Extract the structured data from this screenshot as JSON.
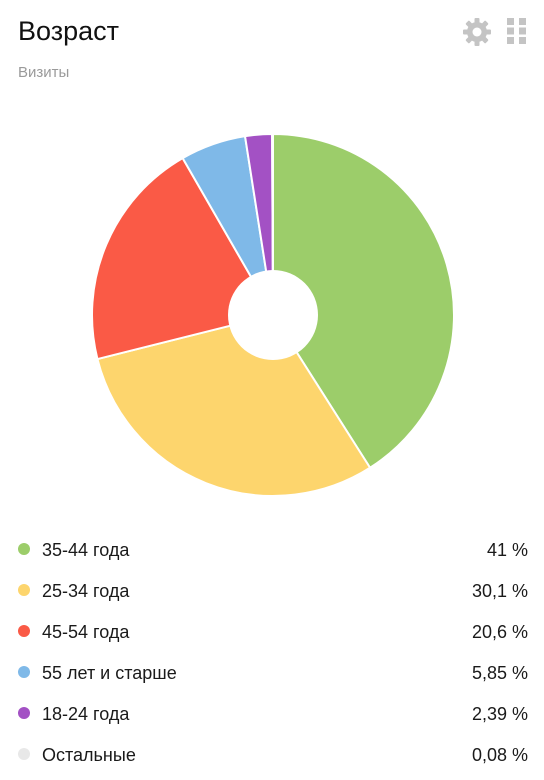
{
  "header": {
    "title": "Возраст",
    "subtitle": "Визиты",
    "icons": {
      "settings": "gear-icon",
      "drag": "grid-dots-icon"
    },
    "icon_color": "#c4c4c4"
  },
  "chart_data": {
    "type": "pie",
    "donut": true,
    "title": "Возраст",
    "subtitle": "Визиты",
    "categories": [
      "35-44 года",
      "25-34 года",
      "45-54 года",
      "55 лет и старше",
      "18-24 года",
      "Остальные"
    ],
    "values": [
      41,
      30.1,
      20.6,
      5.85,
      2.39,
      0.08
    ],
    "value_labels": [
      "41 %",
      "30,1 %",
      "20,6 %",
      "5,85 %",
      "2,39 %",
      "0,08 %"
    ],
    "colors": [
      "#9ccd6a",
      "#fdd56d",
      "#fa5a46",
      "#7fb9e8",
      "#a351c4",
      "#e8e8e8"
    ],
    "legend": "bottom"
  }
}
